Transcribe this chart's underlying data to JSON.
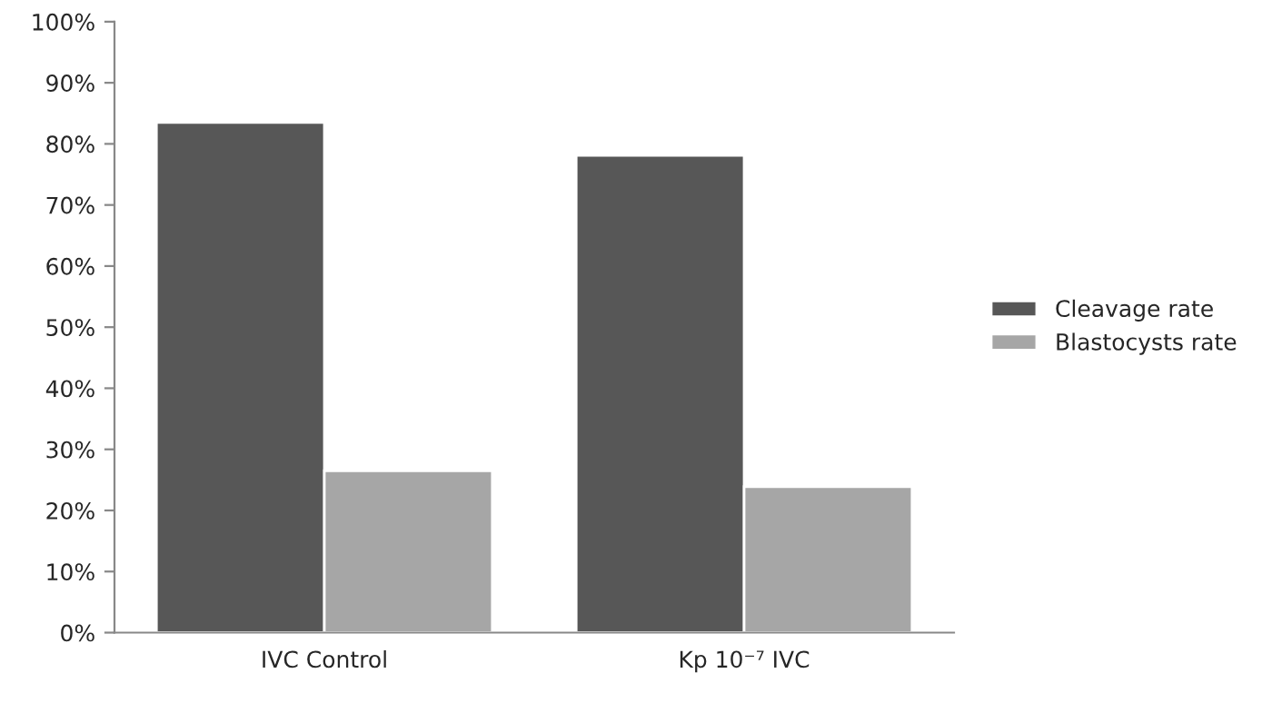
{
  "chart_data": {
    "type": "bar",
    "categories": [
      "IVC Control",
      "Kp 10⁻⁷ IVC"
    ],
    "series": [
      {
        "name": "Cleavage rate",
        "color": "#575757",
        "values": [
          83.5,
          78.1
        ]
      },
      {
        "name": "Blastocysts rate",
        "color": "#a6a6a6",
        "values": [
          26.5,
          23.9
        ]
      }
    ],
    "ylim": [
      0,
      100
    ],
    "yticks": [
      {
        "value": 0,
        "label": "0%"
      },
      {
        "value": 10,
        "label": "10%"
      },
      {
        "value": 20,
        "label": "20%"
      },
      {
        "value": 30,
        "label": "30%"
      },
      {
        "value": 40,
        "label": "40%"
      },
      {
        "value": 50,
        "label": "50%"
      },
      {
        "value": 60,
        "label": "60%"
      },
      {
        "value": 70,
        "label": "70%"
      },
      {
        "value": 80,
        "label": "80%"
      },
      {
        "value": 90,
        "label": "90%"
      },
      {
        "value": 100,
        "label": "100%"
      }
    ],
    "grid": false,
    "legend": "right"
  }
}
